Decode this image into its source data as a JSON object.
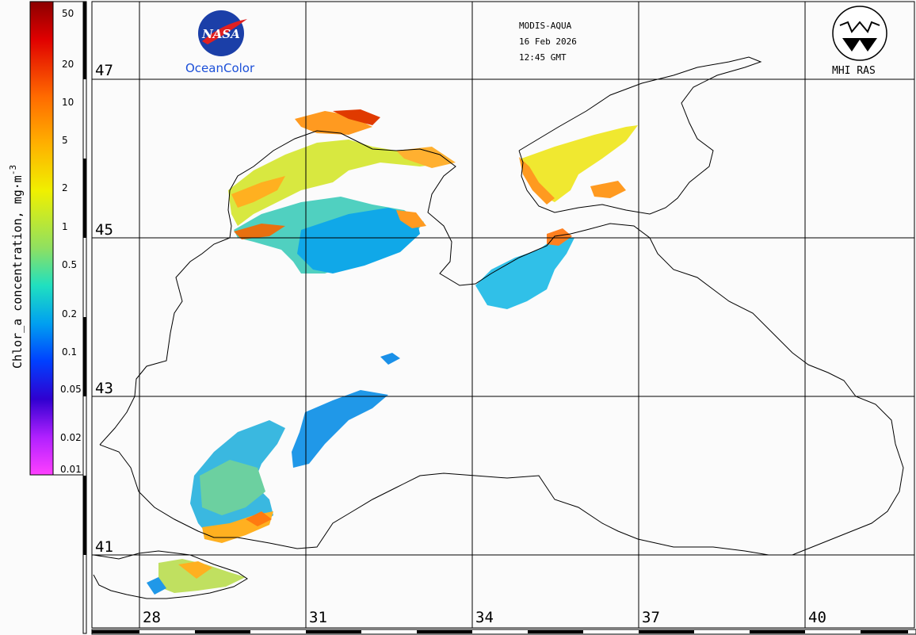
{
  "header": {
    "sensor": "MODIS-AQUA",
    "date": "16 Feb 2026",
    "time": "12:45 GMT"
  },
  "logos": {
    "nasa_wordmark": "NASA",
    "oceancolor": "OceanColor",
    "mhi": "MHI RAS"
  },
  "colorbar": {
    "label": "Chlor_a concentration, mg·m",
    "label_exp": "-3",
    "ticks": [
      "50",
      "20",
      "10",
      "5",
      "2",
      "1",
      "0.5",
      "0.2",
      "0.1",
      "0.05",
      "0.02",
      "0.01"
    ],
    "colors": [
      "#8b0000",
      "#e00000",
      "#ff6a00",
      "#ffb000",
      "#f0f000",
      "#90e060",
      "#20e0c0",
      "#00a0f0",
      "#0040ff",
      "#3000d0",
      "#9000ff",
      "#e040ff",
      "#ff40ff"
    ]
  },
  "map": {
    "latitudes": [
      "47",
      "45",
      "43",
      "41"
    ],
    "longitudes": [
      "28",
      "31",
      "34",
      "37",
      "40"
    ],
    "colors": {
      "land": "#fbfbfb",
      "coast": "#000000",
      "grid": "#000000"
    }
  }
}
